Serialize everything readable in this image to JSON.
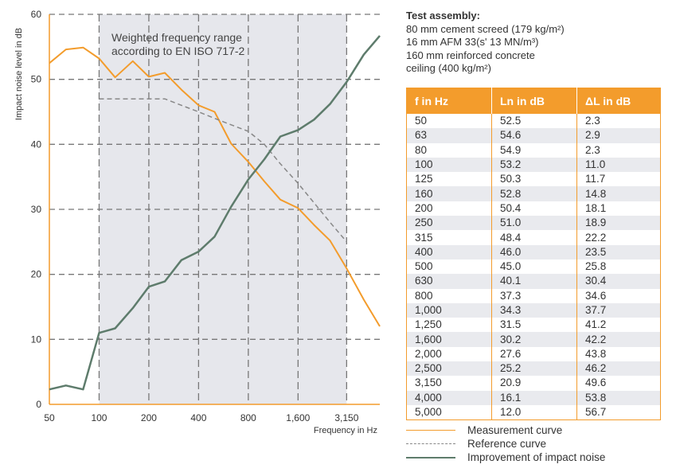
{
  "colors": {
    "measurement": "#f39c2c",
    "reference": "#888888",
    "improvement": "#5e7c6c",
    "weighted_band": "#e6e7ec",
    "table_header": "#f39c2c",
    "table_stripe": "#e9eaee"
  },
  "assembly": {
    "title": "Test assembly:",
    "lines": [
      "80 mm cement screed (179 kg/m²)",
      "16 mm AFM 33(s' 13 MN/m³)",
      "160 mm reinforced concrete",
      "ceiling (400 kg/m²)"
    ]
  },
  "table": {
    "headers": [
      "f in Hz",
      "Ln in dB",
      "ΔL in dB"
    ],
    "rows": [
      [
        "50",
        "52.5",
        "2.3"
      ],
      [
        "63",
        "54.6",
        "2.9"
      ],
      [
        "80",
        "54.9",
        "2.3"
      ],
      [
        "100",
        "53.2",
        "11.0"
      ],
      [
        "125",
        "50.3",
        "11.7"
      ],
      [
        "160",
        "52.8",
        "14.8"
      ],
      [
        "200",
        "50.4",
        "18.1"
      ],
      [
        "250",
        "51.0",
        "18.9"
      ],
      [
        "315",
        "48.4",
        "22.2"
      ],
      [
        "400",
        "46.0",
        "23.5"
      ],
      [
        "500",
        "45.0",
        "25.8"
      ],
      [
        "630",
        "40.1",
        "30.4"
      ],
      [
        "800",
        "37.3",
        "34.6"
      ],
      [
        "1,000",
        "34.3",
        "37.7"
      ],
      [
        "1,250",
        "31.5",
        "41.2"
      ],
      [
        "1,600",
        "30.2",
        "42.2"
      ],
      [
        "2,000",
        "27.6",
        "43.8"
      ],
      [
        "2,500",
        "25.2",
        "46.2"
      ],
      [
        "3,150",
        "20.9",
        "49.6"
      ],
      [
        "4,000",
        "16.1",
        "53.8"
      ],
      [
        "5,000",
        "12.0",
        "56.7"
      ]
    ]
  },
  "legend": {
    "measurement": "Measurement curve",
    "reference": "Reference curve",
    "improvement": "Improvement of impact noise"
  },
  "chart_data": {
    "type": "line",
    "ylabel": "Impact noise level in dB",
    "xlabel": "Frequency in Hz",
    "ylim": [
      0,
      60
    ],
    "yticks": [
      0,
      10,
      20,
      30,
      40,
      50,
      60
    ],
    "x": [
      50,
      63,
      80,
      100,
      125,
      160,
      200,
      250,
      315,
      400,
      500,
      630,
      800,
      1000,
      1250,
      1600,
      2000,
      2500,
      3150,
      4000,
      5000
    ],
    "xtick_labels": [
      "50",
      "100",
      "200",
      "400",
      "800",
      "1,600",
      "3,150"
    ],
    "band_annotation": "Weighted frequency range\naccording to EN ISO 717-2",
    "band_range": [
      100,
      3150
    ],
    "series": [
      {
        "name": "Measurement curve",
        "key": "measurement",
        "values": [
          52.5,
          54.6,
          54.9,
          53.2,
          50.3,
          52.8,
          50.4,
          51.0,
          48.4,
          46.0,
          45.0,
          40.1,
          37.3,
          34.3,
          31.5,
          30.2,
          27.6,
          25.2,
          20.9,
          16.1,
          12.0
        ]
      },
      {
        "name": "Reference curve",
        "key": "reference",
        "x": [
          100,
          125,
          160,
          200,
          250,
          315,
          400,
          500,
          630,
          800,
          1000,
          1250,
          1600,
          2000,
          2500,
          3150
        ],
        "values": [
          47,
          47,
          47,
          47,
          47,
          46,
          45,
          44,
          43,
          42,
          40,
          37,
          34,
          31,
          28,
          25
        ]
      },
      {
        "name": "Improvement of impact noise",
        "key": "improvement",
        "values": [
          2.3,
          2.9,
          2.3,
          11.0,
          11.7,
          14.8,
          18.1,
          18.9,
          22.2,
          23.5,
          25.8,
          30.4,
          34.6,
          37.7,
          41.2,
          42.2,
          43.8,
          46.2,
          49.6,
          53.8,
          56.7
        ]
      }
    ]
  }
}
